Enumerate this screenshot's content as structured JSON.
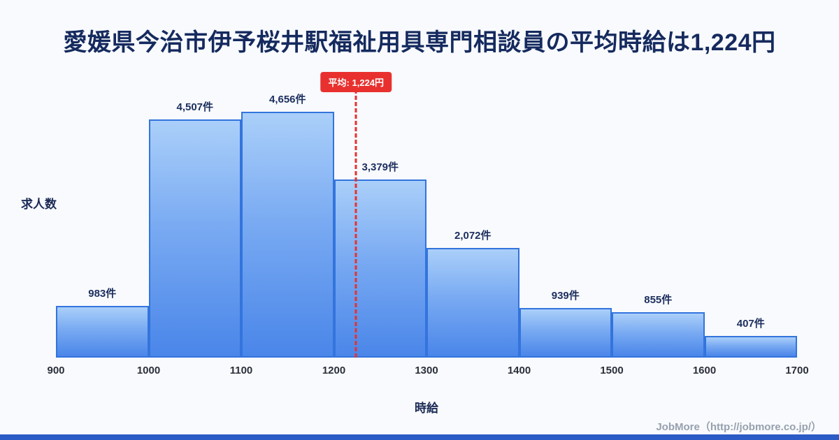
{
  "title": "愛媛県今治市伊予桜井駅福祉用具専門相談員の平均時給は1,224円",
  "chart_data": {
    "type": "bar",
    "subtype": "histogram",
    "title": "愛媛県今治市伊予桜井駅福祉用具専門相談員の平均時給は1,224円",
    "xlabel": "時給",
    "ylabel": "求人数",
    "bin_edges": [
      900,
      1000,
      1100,
      1200,
      1300,
      1400,
      1500,
      1600,
      1700
    ],
    "values": [
      983,
      4507,
      4656,
      3379,
      2072,
      939,
      855,
      407
    ],
    "bar_labels": [
      "983件",
      "4,507件",
      "4,656件",
      "3,379件",
      "2,072件",
      "939件",
      "855件",
      "407件"
    ],
    "x_ticks": [
      "900",
      "1000",
      "1100",
      "1200",
      "1300",
      "1400",
      "1500",
      "1600",
      "1700"
    ],
    "xlim": [
      900,
      1700
    ],
    "ylim": [
      0,
      4656
    ],
    "grid": false,
    "legend": false,
    "average": {
      "value": 1224,
      "label": "平均: 1,224円"
    },
    "colors": {
      "bar_gradient_top": "#aacff9",
      "bar_gradient_bottom": "#4a86e9",
      "bar_border": "#3374dd",
      "average_line": "#e8312f",
      "title_color": "#152a5e",
      "background": "#f8fafd",
      "bottom_strip": "#2b5cc5"
    }
  },
  "footer": {
    "credit": "JobMore（http://jobmore.co.jp/）"
  }
}
